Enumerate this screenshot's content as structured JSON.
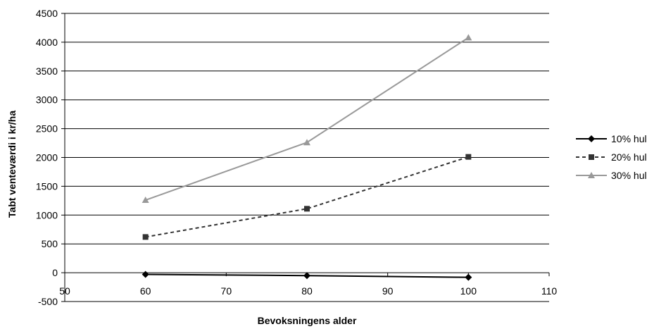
{
  "chart_data": {
    "type": "line",
    "xlabel": "Bevoksningens alder",
    "ylabel": "Tabt venteværdi i kr/ha",
    "xlim": [
      50,
      110
    ],
    "ylim": [
      -500,
      4500
    ],
    "xticks": [
      50,
      60,
      70,
      80,
      90,
      100,
      110
    ],
    "yticks": [
      -500,
      0,
      500,
      1000,
      1500,
      2000,
      2500,
      3000,
      3500,
      4000,
      4500
    ],
    "grid": "horizontal",
    "legend_position": "right",
    "series": [
      {
        "name": "10% hul",
        "x": [
          60,
          80,
          100
        ],
        "y": [
          -30,
          -50,
          -80
        ],
        "color": "#000000",
        "dash": "solid",
        "marker": "diamond"
      },
      {
        "name": "20% hul",
        "x": [
          60,
          80,
          100
        ],
        "y": [
          620,
          1110,
          2010
        ],
        "color": "#333333",
        "dash": "dashed",
        "marker": "square"
      },
      {
        "name": "30% hul",
        "x": [
          60,
          80,
          100
        ],
        "y": [
          1260,
          2260,
          4080
        ],
        "color": "#999999",
        "dash": "solid",
        "marker": "triangle"
      }
    ]
  }
}
